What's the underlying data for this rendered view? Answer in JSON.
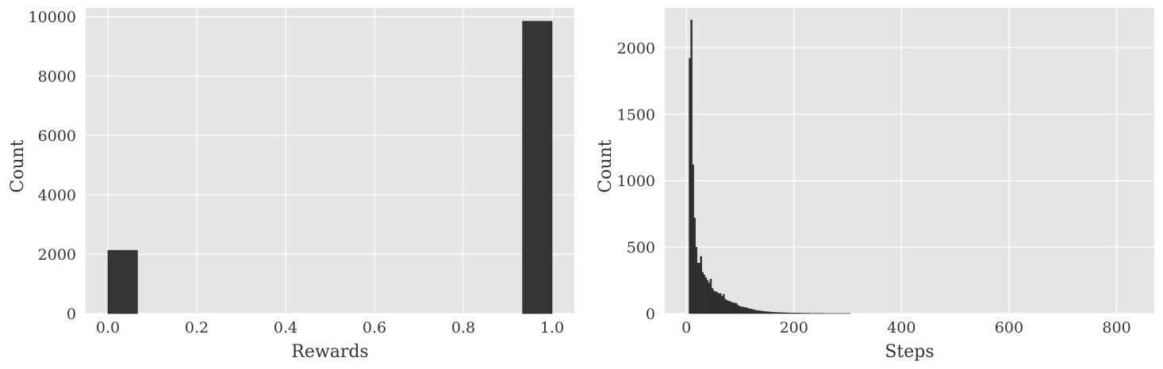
{
  "chart_data": [
    {
      "type": "bar",
      "title": "",
      "xlabel": "Rewards",
      "ylabel": "Count",
      "xlim": [
        -0.05,
        1.05
      ],
      "ylim": [
        0,
        10300
      ],
      "xticks": [
        0.0,
        0.2,
        0.4,
        0.6,
        0.8,
        1.0
      ],
      "xtick_labels": [
        "0.0",
        "0.2",
        "0.4",
        "0.6",
        "0.8",
        "1.0"
      ],
      "yticks": [
        0,
        2000,
        4000,
        6000,
        8000,
        10000
      ],
      "ytick_labels": [
        "0",
        "2000",
        "4000",
        "6000",
        "8000",
        "10000"
      ],
      "grid": true,
      "bar_color": "#2b2b2b",
      "bins": [
        {
          "x0": 0.0,
          "x1": 0.0667,
          "count": 2130
        },
        {
          "x0": 0.9333,
          "x1": 1.0,
          "count": 9850
        }
      ]
    },
    {
      "type": "bar",
      "title": "",
      "xlabel": "Steps",
      "ylabel": "Count",
      "xlim": [
        -40,
        870
      ],
      "ylim": [
        0,
        2300
      ],
      "xticks": [
        0,
        200,
        400,
        600,
        800
      ],
      "xtick_labels": [
        "0",
        "200",
        "400",
        "600",
        "800"
      ],
      "yticks": [
        0,
        500,
        1000,
        1500,
        2000
      ],
      "ytick_labels": [
        "0",
        "500",
        "1000",
        "1500",
        "2000"
      ],
      "grid": true,
      "bar_color": "#2b2b2b",
      "bin_start": 5,
      "bin_width": 3,
      "counts": [
        1920,
        2210,
        1120,
        720,
        500,
        380,
        380,
        430,
        310,
        290,
        270,
        250,
        230,
        260,
        190,
        170,
        165,
        160,
        150,
        150,
        130,
        145,
        110,
        100,
        95,
        90,
        85,
        80,
        80,
        75,
        60,
        55,
        50,
        50,
        45,
        45,
        40,
        35,
        35,
        30,
        28,
        25,
        22,
        22,
        20,
        18,
        16,
        15,
        14,
        13,
        12,
        11,
        10,
        9,
        9,
        8,
        8,
        7,
        7,
        6,
        6,
        6,
        5,
        5,
        5,
        4,
        4,
        4,
        4,
        3,
        3,
        3,
        3,
        3,
        3,
        2,
        2,
        2,
        2,
        2,
        2,
        2,
        2,
        1,
        1,
        1,
        1,
        1,
        1,
        1,
        1,
        1,
        1,
        1,
        1,
        1,
        1,
        1,
        1,
        1
      ]
    }
  ]
}
